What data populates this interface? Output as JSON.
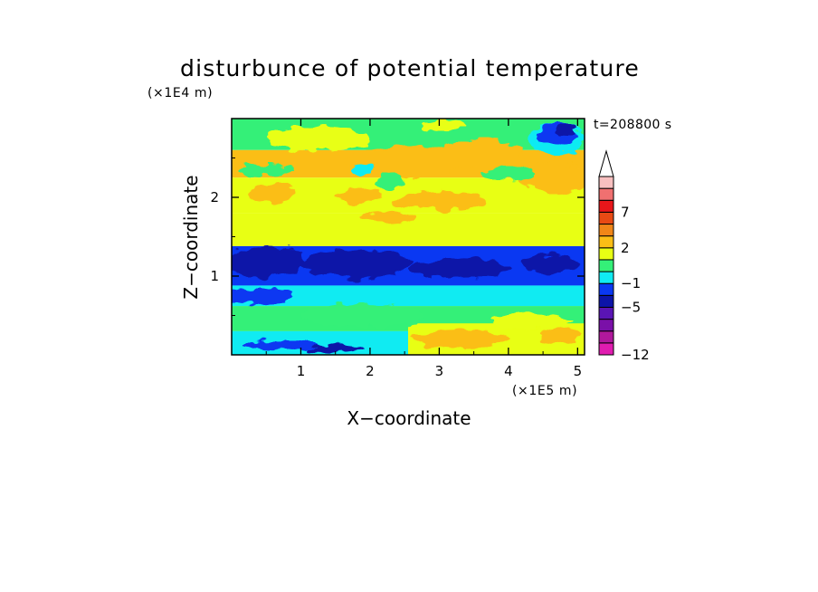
{
  "chart_data": {
    "type": "heatmap",
    "title": "disturbunce of potential temperature",
    "xlabel": "X−coordinate",
    "ylabel": "Z−coordinate",
    "x_unit": "(×1E5 m)",
    "y_unit": "(×1E4 m)",
    "time_label": "t=208800 s",
    "xlim": [
      0,
      5.1
    ],
    "ylim": [
      0,
      3.0
    ],
    "x_ticks": [
      1,
      2,
      3,
      4,
      5
    ],
    "x_tick_labels": [
      "1",
      "2",
      "3",
      "4",
      "5"
    ],
    "y_ticks": [
      1,
      2
    ],
    "y_tick_labels": [
      "1",
      "2"
    ],
    "colorbar": {
      "extend": "max",
      "levels": [
        {
          "color": "#e01cb0"
        },
        {
          "color": "#b0189c"
        },
        {
          "color": "#7a10a8"
        },
        {
          "color": "#5a14b4"
        },
        {
          "color": "#0c14a8"
        },
        {
          "color": "#0a38f2"
        },
        {
          "color": "#10ebf2"
        },
        {
          "color": "#34f078"
        },
        {
          "color": "#e8ff14"
        },
        {
          "color": "#fbbe16"
        },
        {
          "color": "#f08618"
        },
        {
          "color": "#e84a14"
        },
        {
          "color": "#e8161a"
        },
        {
          "color": "#f07070"
        },
        {
          "color": "#f8c0c0"
        }
      ],
      "labels": [
        "−12",
        "−5",
        "−1",
        "2",
        "7"
      ]
    },
    "field_rows": [
      {
        "z_range": [
          2.6,
          3.0
        ],
        "x_range": [
          0.0,
          5.1
        ],
        "value": 1,
        "color": "#34f078"
      },
      {
        "z_range": [
          2.25,
          2.6
        ],
        "x_range": [
          0.0,
          5.1
        ],
        "value": 3,
        "color": "#fbbe16"
      },
      {
        "z_range": [
          1.8,
          2.25
        ],
        "x_range": [
          0.0,
          5.1
        ],
        "value": 2,
        "color": "#e8ff14"
      },
      {
        "z_range": [
          1.38,
          1.8
        ],
        "x_range": [
          0.0,
          5.1
        ],
        "value": 1.5,
        "color": "#e8ff14"
      },
      {
        "z_range": [
          0.88,
          1.38
        ],
        "x_range": [
          0.0,
          5.1
        ],
        "value": -3.5,
        "color": "#0a38f2"
      },
      {
        "z_range": [
          0.62,
          0.88
        ],
        "x_range": [
          0.0,
          5.1
        ],
        "value": -0.5,
        "color": "#10ebf2"
      },
      {
        "z_range": [
          0.3,
          0.62
        ],
        "x_range": [
          0.0,
          5.1
        ],
        "value": 0.5,
        "color": "#34f078"
      },
      {
        "z_range": [
          0.0,
          0.3
        ],
        "x_range": [
          0.0,
          2.55
        ],
        "value": -1,
        "color": "#10ebf2"
      },
      {
        "z_range": [
          0.0,
          0.4
        ],
        "x_range": [
          2.55,
          5.1
        ],
        "value": 2,
        "color": "#e8ff14"
      }
    ],
    "field_patches": [
      {
        "cx": 1.25,
        "cz": 2.75,
        "rx": 0.75,
        "rz": 0.16,
        "color": "#e8ff14"
      },
      {
        "cx": 2.5,
        "cz": 2.45,
        "rx": 0.85,
        "rz": 0.2,
        "color": "#fbbe16"
      },
      {
        "cx": 3.6,
        "cz": 2.55,
        "rx": 0.6,
        "rz": 0.18,
        "color": "#fbbe16"
      },
      {
        "cx": 4.65,
        "cz": 2.25,
        "rx": 0.5,
        "rz": 0.2,
        "color": "#fbbe16"
      },
      {
        "cx": 0.6,
        "cz": 2.05,
        "rx": 0.35,
        "rz": 0.12,
        "color": "#fbbe16"
      },
      {
        "cx": 1.85,
        "cz": 2.02,
        "rx": 0.35,
        "rz": 0.1,
        "color": "#fbbe16"
      },
      {
        "cx": 3.0,
        "cz": 1.95,
        "rx": 0.7,
        "rz": 0.12,
        "color": "#fbbe16"
      },
      {
        "cx": 2.25,
        "cz": 1.75,
        "rx": 0.4,
        "rz": 0.08,
        "color": "#fbbe16"
      },
      {
        "cx": 0.5,
        "cz": 2.35,
        "rx": 0.4,
        "rz": 0.07,
        "color": "#34f078"
      },
      {
        "cx": 2.3,
        "cz": 2.2,
        "rx": 0.2,
        "rz": 0.12,
        "color": "#34f078"
      },
      {
        "cx": 1.9,
        "cz": 2.35,
        "rx": 0.15,
        "rz": 0.08,
        "color": "#10ebf2"
      },
      {
        "cx": 4.0,
        "cz": 2.3,
        "rx": 0.4,
        "rz": 0.08,
        "color": "#34f078"
      },
      {
        "cx": 4.7,
        "cz": 2.75,
        "rx": 0.4,
        "rz": 0.2,
        "color": "#10ebf2"
      },
      {
        "cx": 4.72,
        "cz": 2.8,
        "rx": 0.28,
        "rz": 0.15,
        "color": "#0a38f2"
      },
      {
        "cx": 4.82,
        "cz": 2.85,
        "rx": 0.15,
        "rz": 0.08,
        "color": "#0c14a8"
      },
      {
        "cx": 3.05,
        "cz": 2.9,
        "rx": 0.3,
        "rz": 0.08,
        "color": "#e8ff14"
      },
      {
        "cx": 0.5,
        "cz": 1.18,
        "rx": 0.55,
        "rz": 0.2,
        "color": "#0c14a8"
      },
      {
        "cx": 1.8,
        "cz": 1.15,
        "rx": 0.8,
        "rz": 0.18,
        "color": "#0c14a8"
      },
      {
        "cx": 3.3,
        "cz": 1.1,
        "rx": 0.7,
        "rz": 0.12,
        "color": "#0c14a8"
      },
      {
        "cx": 4.6,
        "cz": 1.15,
        "rx": 0.4,
        "rz": 0.12,
        "color": "#0c14a8"
      },
      {
        "cx": 0.4,
        "cz": 0.75,
        "rx": 0.5,
        "rz": 0.1,
        "color": "#0a38f2"
      },
      {
        "cx": 1.9,
        "cz": 0.5,
        "rx": 0.9,
        "rz": 0.15,
        "color": "#34f078"
      },
      {
        "cx": 4.3,
        "cz": 0.42,
        "rx": 0.6,
        "rz": 0.1,
        "color": "#e8ff14"
      },
      {
        "cx": 3.3,
        "cz": 0.2,
        "rx": 0.7,
        "rz": 0.12,
        "color": "#fbbe16"
      },
      {
        "cx": 4.75,
        "cz": 0.25,
        "rx": 0.3,
        "rz": 0.12,
        "color": "#fbbe16"
      },
      {
        "cx": 0.7,
        "cz": 0.12,
        "rx": 0.55,
        "rz": 0.06,
        "color": "#0a38f2"
      },
      {
        "cx": 1.5,
        "cz": 0.08,
        "rx": 0.4,
        "rz": 0.05,
        "color": "#0c14a8"
      }
    ]
  }
}
